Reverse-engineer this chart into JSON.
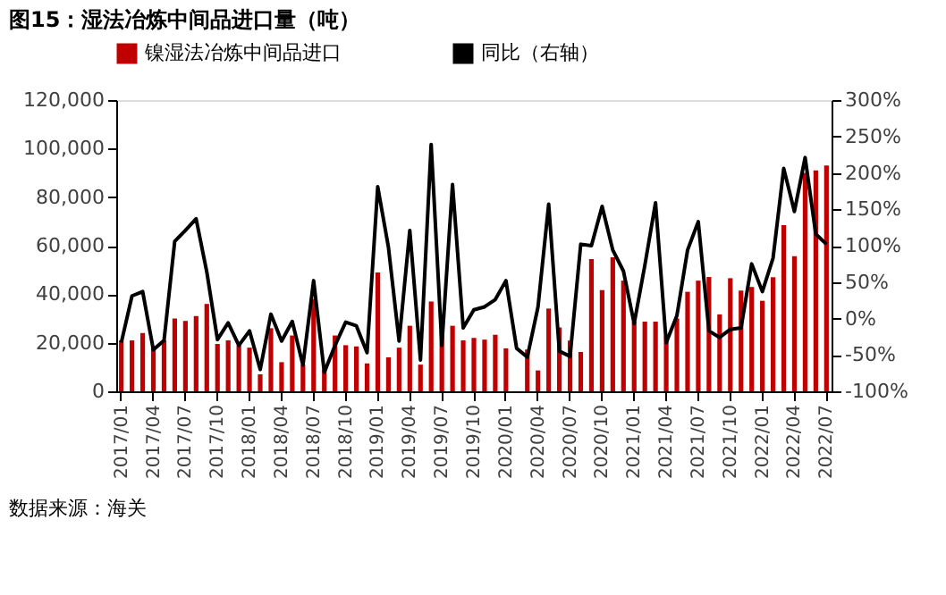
{
  "chart_data": {
    "type": "bar",
    "title": "图15：湿法冶炼中间品进口量（吨）",
    "categories": [
      "2017/01",
      null,
      null,
      "2017/04",
      null,
      null,
      "2017/07",
      null,
      null,
      "2017/10",
      null,
      null,
      "2018/01",
      null,
      null,
      "2018/04",
      null,
      null,
      "2018/07",
      null,
      null,
      "2018/10",
      null,
      null,
      "2019/01",
      null,
      null,
      "2019/04",
      null,
      null,
      "2019/07",
      null,
      null,
      "2019/10",
      null,
      null,
      "2020/01",
      null,
      null,
      "2020/04",
      null,
      null,
      "2020/07",
      null,
      null,
      "2020/10",
      null,
      null,
      "2021/01",
      null,
      null,
      "2021/04",
      null,
      null,
      "2021/07",
      null,
      null,
      "2021/10",
      null,
      null,
      "2022/01",
      null,
      null,
      "2022/04",
      null,
      null,
      "2022/07"
    ],
    "series": [
      {
        "name": "镍湿法冶炼中间品进口",
        "color": "#c00000",
        "values": [
          21000,
          21000,
          24000,
          18000,
          21000,
          30000,
          29000,
          31000,
          36000,
          19500,
          21000,
          19000,
          18000,
          7000,
          26000,
          12000,
          23000,
          11000,
          38000,
          9000,
          23000,
          19000,
          18500,
          11500,
          49000,
          14000,
          18000,
          27000,
          11000,
          37000,
          25000,
          27000,
          21000,
          22000,
          21300,
          23300,
          17700,
          null,
          17200,
          8600,
          34100,
          26300,
          20900,
          16200,
          54500,
          41700,
          55200,
          45600,
          28700,
          28700,
          28700,
          22600,
          30000,
          41000,
          45600,
          47100,
          31700,
          46600,
          41500,
          43000,
          37300,
          47000,
          68500,
          55700,
          90000,
          91000,
          93000
        ]
      },
      {
        "name": "同比（右轴）",
        "type": "line",
        "axis": "y2",
        "color": "#000000",
        "values": [
          -33,
          31,
          37,
          -43,
          -30,
          106,
          121,
          137,
          64,
          -29,
          -6,
          -37,
          -17,
          -70,
          6,
          -31,
          -4,
          -64,
          52,
          -74,
          -37,
          -5,
          -10,
          -47,
          181,
          98,
          -31,
          121,
          -57,
          239,
          -37,
          184,
          -13,
          12,
          16,
          26,
          52,
          -41,
          -53,
          16,
          157,
          -45,
          -52,
          102,
          100,
          154,
          94,
          65,
          -7,
          73,
          159,
          -33,
          4,
          94,
          133,
          -17,
          -26,
          -15,
          -13,
          75,
          37,
          83,
          206,
          147,
          221,
          116,
          102
        ]
      }
    ],
    "ylim": [
      0,
      120000
    ],
    "yticks": [
      {
        "value": 0,
        "label": "0"
      },
      {
        "value": 20000,
        "label": "20,000"
      },
      {
        "value": 40000,
        "label": "40,000"
      },
      {
        "value": 60000,
        "label": "60,000"
      },
      {
        "value": 80000,
        "label": "80,000"
      },
      {
        "value": 100000,
        "label": "100,000"
      },
      {
        "value": 120000,
        "label": "120,000"
      }
    ],
    "y2lim": [
      -100,
      300
    ],
    "y2ticks": [
      {
        "value": -100,
        "label": "-100%"
      },
      {
        "value": -50,
        "label": "-50%"
      },
      {
        "value": 0,
        "label": "0%"
      },
      {
        "value": 50,
        "label": "50%"
      },
      {
        "value": 100,
        "label": "100%"
      },
      {
        "value": 150,
        "label": "150%"
      },
      {
        "value": 200,
        "label": "200%"
      },
      {
        "value": 250,
        "label": "250%"
      },
      {
        "value": 300,
        "label": "300%"
      }
    ],
    "legend": "top",
    "grid": false,
    "line_style": "solid",
    "marker": "none",
    "annotations": [
      "数据来源：海关"
    ]
  }
}
